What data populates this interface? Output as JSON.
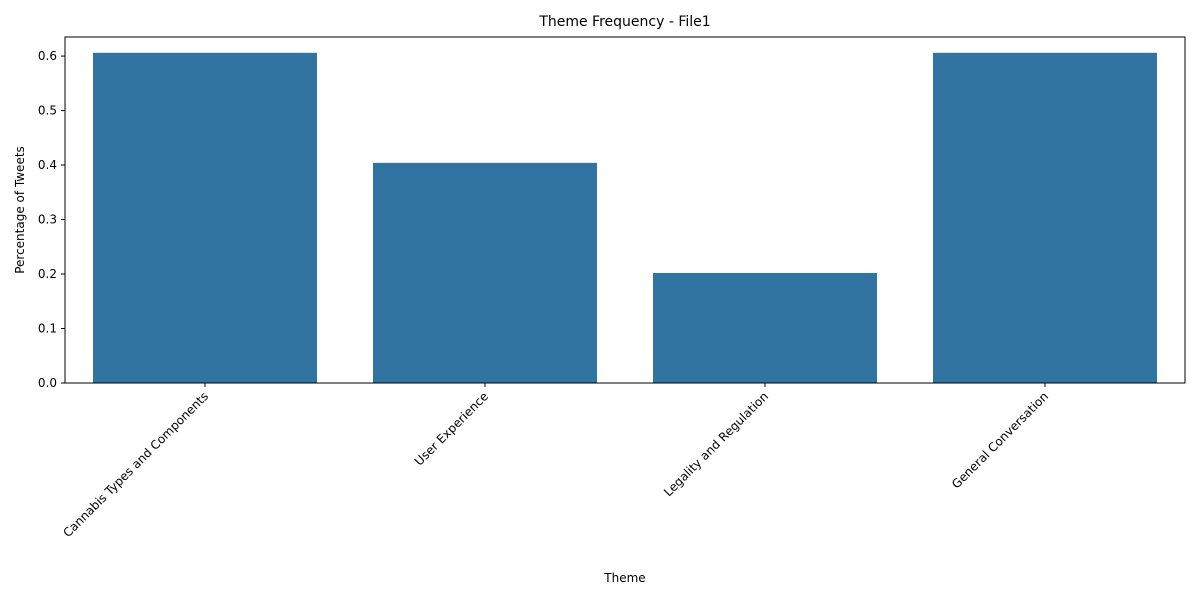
{
  "chart_data": {
    "type": "bar",
    "title": "Theme Frequency - File1",
    "xlabel": "Theme",
    "ylabel": "Percentage of Tweets",
    "categories": [
      "Cannabis Types and Components",
      "User Experience",
      "Legality and Regulation",
      "General Conversation"
    ],
    "values": [
      0.606,
      0.404,
      0.202,
      0.606
    ],
    "ylim": [
      0,
      0.635
    ],
    "yticks": [
      "0.0",
      "0.1",
      "0.2",
      "0.3",
      "0.4",
      "0.5",
      "0.6"
    ],
    "grid": false,
    "bar_color": "#3274a1",
    "x_tick_rotation_deg": 45
  }
}
